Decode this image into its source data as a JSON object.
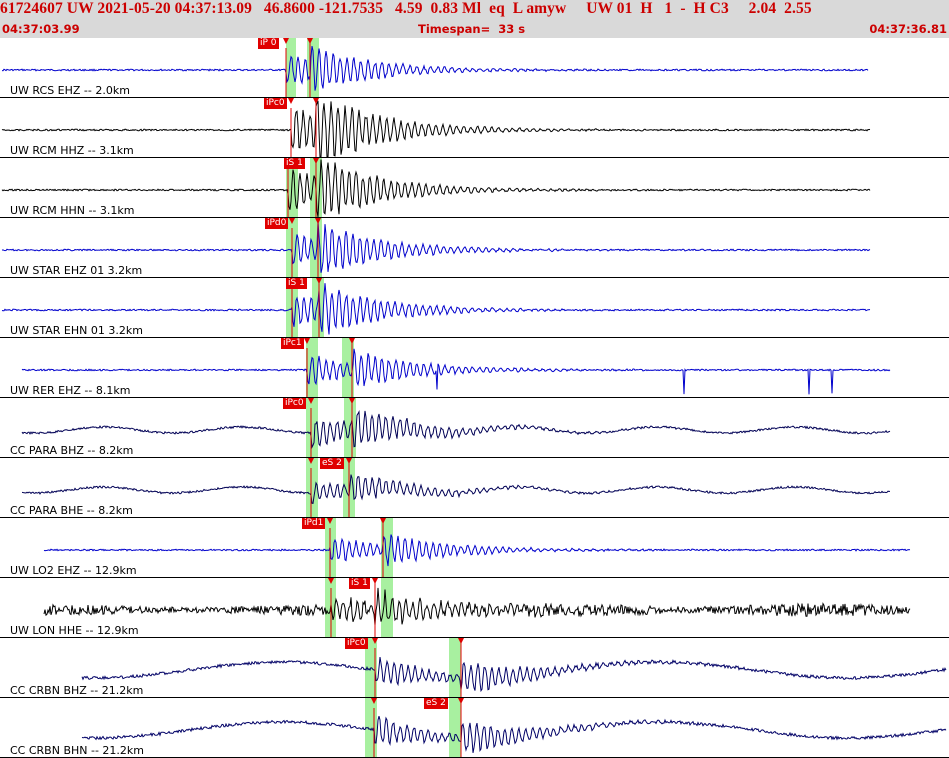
{
  "header": {
    "summary": "61724607 UW 2021-05-20 04:37:13.09   46.8600 -121.7535   4.59  0.83 Ml  eq  L amyw     UW 01  H   1  -  H C3     2.04  2.55",
    "start_time": "04:37:03.99",
    "timespan": "Timespan=  33 s",
    "end_time": "04:37:36.81"
  },
  "traces": [
    {
      "label": "UW RCS EHZ -- 2.0km",
      "color": "#0000cc",
      "pick": "iP 0",
      "pick_left": true
    },
    {
      "label": "UW RCM HHZ -- 3.1km",
      "color": "#000000",
      "pick": "iPc0",
      "pick_left": true
    },
    {
      "label": "UW RCM HHN -- 3.1km",
      "color": "#000000",
      "pick": "iS 1",
      "pick_left": false
    },
    {
      "label": "UW STAR EHZ 01 3.2km",
      "color": "#0000cc",
      "pick": "iPd0",
      "pick_left": true
    },
    {
      "label": "UW STAR EHN 01 3.2km",
      "color": "#0000cc",
      "pick": "iS 1",
      "pick_left": false
    },
    {
      "label": "UW RER EHZ -- 8.1km",
      "color": "#0000cc",
      "pick": "iPc1",
      "pick_left": true
    },
    {
      "label": "CC PARA BHZ -- 8.2km",
      "color": "#000055",
      "pick": "iPc0",
      "pick_left": true
    },
    {
      "label": "CC PARA BHE -- 8.2km",
      "color": "#000055",
      "pick": "eS 2",
      "pick_left": false
    },
    {
      "label": "UW LO2 EHZ -- 12.9km",
      "color": "#0000cc",
      "pick": "iPd1",
      "pick_left": true
    },
    {
      "label": "UW LON HHE -- 12.9km",
      "color": "#000000",
      "pick": "iS 1",
      "pick_left": false
    },
    {
      "label": "CC CRBN BHZ -- 21.2km",
      "color": "#000066",
      "pick": "iPc0",
      "pick_left": true
    },
    {
      "label": "CC CRBN BHN -- 21.2km",
      "color": "#000066",
      "pick": "eS 2",
      "pick_left": false
    }
  ]
}
